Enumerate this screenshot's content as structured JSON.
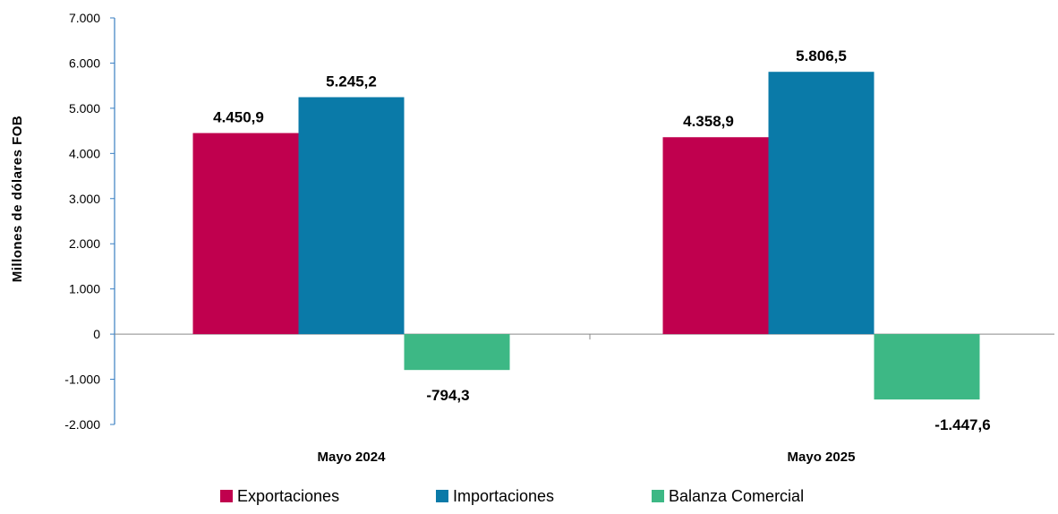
{
  "chart_data": {
    "type": "bar",
    "title": "",
    "xlabel": "",
    "ylabel": "Millones de dólares FOB",
    "categories": [
      "Mayo 2024",
      "Mayo 2025"
    ],
    "series": [
      {
        "name": "Exportaciones",
        "color": "#c0004e",
        "values": [
          4450.9,
          4358.9
        ],
        "labels": [
          "4.450,9",
          "4.358,9"
        ]
      },
      {
        "name": "Importaciones",
        "color": "#0a7aa8",
        "values": [
          5245.2,
          5806.5
        ],
        "labels": [
          "5.245,2",
          "5.806,5"
        ]
      },
      {
        "name": "Balanza Comercial",
        "color": "#3db885",
        "values": [
          -794.3,
          -1447.6
        ],
        "labels": [
          "-794,3",
          "-1.447,6"
        ]
      }
    ],
    "ylim": [
      -2000,
      7000
    ],
    "yticks": [
      -2000,
      -1000,
      0,
      1000,
      2000,
      3000,
      4000,
      5000,
      6000,
      7000
    ],
    "ytick_labels": [
      "-2.000",
      "-1.000",
      "0",
      "1.000",
      "2.000",
      "3.000",
      "4.000",
      "5.000",
      "6.000",
      "7.000"
    ],
    "grid": false,
    "legend_position": "bottom"
  }
}
